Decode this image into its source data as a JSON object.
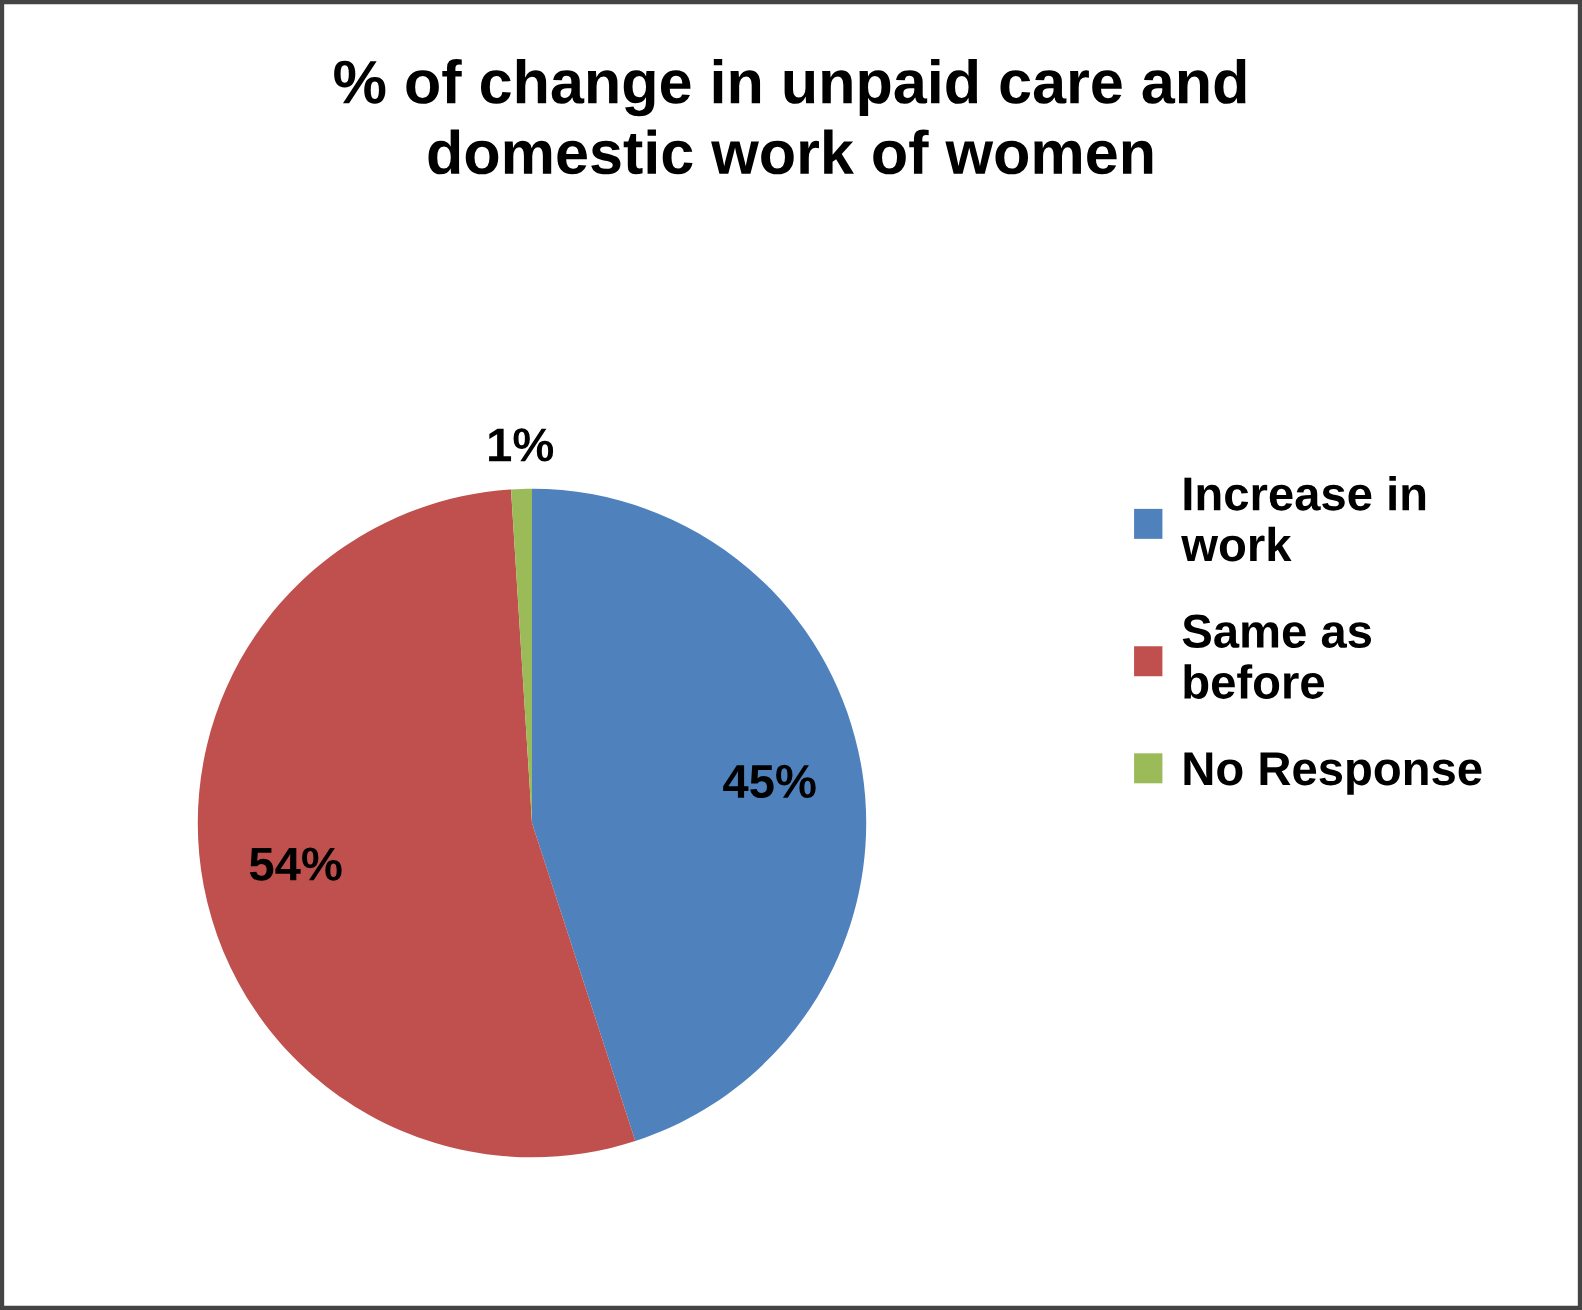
{
  "chart_data": {
    "type": "pie",
    "title": "% of change in unpaid care and domestic work of women",
    "categories": [
      "Increase in work",
      "Same as before",
      "No Response"
    ],
    "values": [
      45,
      54,
      1
    ],
    "colors": [
      "#4f81bd",
      "#c0504d",
      "#9bbb59"
    ],
    "value_labels": [
      "45%",
      "54%",
      "1%"
    ],
    "legend": "right"
  }
}
